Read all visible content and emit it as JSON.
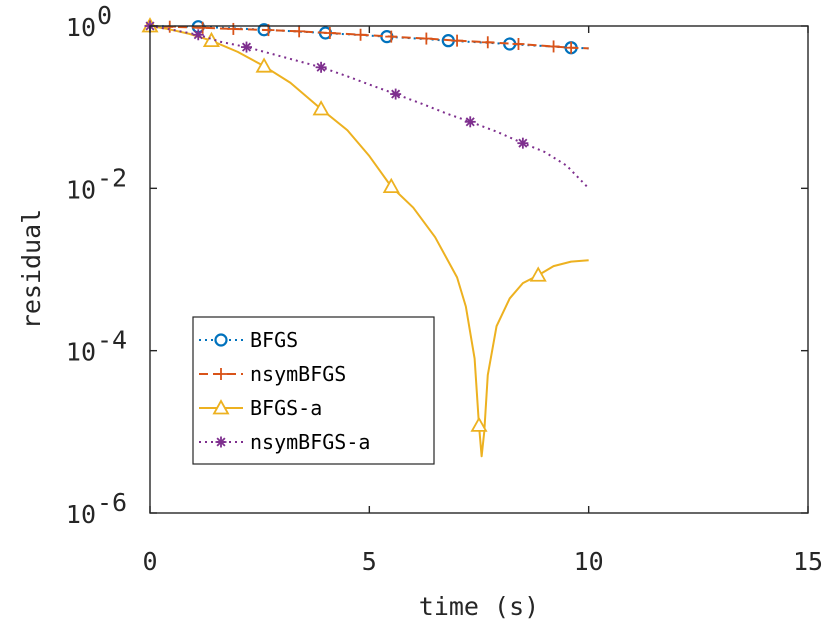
{
  "chart_data": {
    "type": "line",
    "xlabel": "time (s)",
    "ylabel": "residual",
    "xlim": [
      0,
      15
    ],
    "ylim": [
      1e-06,
      1
    ],
    "yscale": "log",
    "x_ticks": [
      0,
      5,
      10,
      15
    ],
    "x_tick_labels": [
      "0",
      "5",
      "10",
      "15"
    ],
    "y_ticks": [
      1e-06,
      0.0001,
      0.01,
      1
    ],
    "y_tick_labels": [
      {
        "base": "10",
        "exp": "-6"
      },
      {
        "base": "10",
        "exp": "-4"
      },
      {
        "base": "10",
        "exp": "-2"
      },
      {
        "base": "10",
        "exp": "0"
      }
    ],
    "grid": false,
    "legend_position": "lower-left",
    "series": [
      {
        "name": "BFGS",
        "color": "#0072bd",
        "line_style": "dotted",
        "marker": "circle",
        "points": [
          [
            0,
            1.0
          ],
          [
            1.1,
            0.98
          ],
          [
            2.6,
            0.9
          ],
          [
            4.0,
            0.82
          ],
          [
            5.4,
            0.74
          ],
          [
            6.8,
            0.66
          ],
          [
            8.2,
            0.6
          ],
          [
            9.6,
            0.54
          ],
          [
            10.0,
            0.53
          ]
        ],
        "marker_x": [
          1.1,
          2.6,
          4.0,
          5.4,
          6.8,
          8.2,
          9.6
        ]
      },
      {
        "name": "nsymBFGS",
        "color": "#d95319",
        "line_style": "dashed",
        "marker": "plus",
        "points": [
          [
            0,
            1.0
          ],
          [
            0.45,
            0.98
          ],
          [
            1.2,
            0.95
          ],
          [
            1.9,
            0.92
          ],
          [
            2.7,
            0.89
          ],
          [
            3.4,
            0.86
          ],
          [
            4.1,
            0.82
          ],
          [
            4.8,
            0.78
          ],
          [
            5.5,
            0.74
          ],
          [
            6.3,
            0.7
          ],
          [
            7.0,
            0.66
          ],
          [
            7.7,
            0.63
          ],
          [
            8.4,
            0.6
          ],
          [
            9.2,
            0.56
          ],
          [
            9.6,
            0.54
          ],
          [
            10.0,
            0.53
          ]
        ],
        "marker_x": [
          0.45,
          1.2,
          1.9,
          2.7,
          3.4,
          4.1,
          4.8,
          5.5,
          6.3,
          7.0,
          7.7,
          8.4,
          9.2,
          9.6
        ]
      },
      {
        "name": "BFGS-a",
        "color": "#edb120",
        "line_style": "solid",
        "marker": "triangle",
        "points": [
          [
            0,
            1.0
          ],
          [
            0.4,
            0.92
          ],
          [
            0.9,
            0.8
          ],
          [
            1.4,
            0.66
          ],
          [
            2.0,
            0.48
          ],
          [
            2.6,
            0.32
          ],
          [
            3.2,
            0.2
          ],
          [
            3.9,
            0.095
          ],
          [
            4.5,
            0.052
          ],
          [
            5.0,
            0.025
          ],
          [
            5.5,
            0.0105
          ],
          [
            6.0,
            0.0058
          ],
          [
            6.5,
            0.0025
          ],
          [
            7.0,
            0.0008
          ],
          [
            7.2,
            0.00035
          ],
          [
            7.4,
            8e-05
          ],
          [
            7.5,
            1.2e-05
          ],
          [
            7.56,
            5e-06
          ],
          [
            7.62,
            1e-05
          ],
          [
            7.7,
            5e-05
          ],
          [
            7.9,
            0.0002
          ],
          [
            8.2,
            0.00044
          ],
          [
            8.5,
            0.00068
          ],
          [
            8.85,
            0.00085
          ],
          [
            9.2,
            0.0011
          ],
          [
            9.6,
            0.00125
          ],
          [
            10.0,
            0.0013
          ]
        ],
        "marker_x": [
          0,
          1.4,
          2.6,
          3.9,
          5.5,
          7.5,
          8.85
        ]
      },
      {
        "name": "nsymBFGS-a",
        "color": "#7e2f8e",
        "line_style": "dotted",
        "marker": "asterisk",
        "points": [
          [
            0,
            1.0
          ],
          [
            0.5,
            0.9
          ],
          [
            1.1,
            0.78
          ],
          [
            1.6,
            0.64
          ],
          [
            2.2,
            0.55
          ],
          [
            2.8,
            0.45
          ],
          [
            3.3,
            0.38
          ],
          [
            3.9,
            0.31
          ],
          [
            4.5,
            0.24
          ],
          [
            5.0,
            0.19
          ],
          [
            5.6,
            0.145
          ],
          [
            6.2,
            0.11
          ],
          [
            6.8,
            0.082
          ],
          [
            7.3,
            0.066
          ],
          [
            7.9,
            0.05
          ],
          [
            8.5,
            0.036
          ],
          [
            9.0,
            0.028
          ],
          [
            9.5,
            0.019
          ],
          [
            10.0,
            0.01
          ]
        ],
        "marker_x": [
          0,
          1.1,
          2.2,
          3.9,
          5.6,
          7.3,
          8.5
        ]
      }
    ]
  }
}
